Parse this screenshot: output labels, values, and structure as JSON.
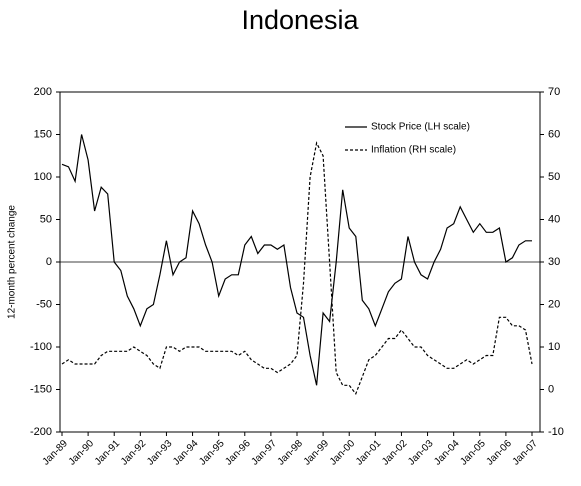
{
  "chart_data": {
    "type": "line",
    "title": "Indonesia",
    "ylabel": "12-month percent change",
    "categories": [
      "Jan-89",
      null,
      null,
      null,
      "Jan-90",
      null,
      null,
      null,
      "Jan-91",
      null,
      null,
      null,
      "Jan-92",
      null,
      null,
      null,
      "Jan-93",
      null,
      null,
      null,
      "Jan-94",
      null,
      null,
      null,
      "Jan-95",
      null,
      null,
      null,
      "Jan-96",
      null,
      null,
      null,
      "Jan-97",
      null,
      null,
      null,
      "Jan-98",
      null,
      null,
      null,
      "Jan-99",
      null,
      null,
      null,
      "Jan-00",
      null,
      null,
      null,
      "Jan-01",
      null,
      null,
      null,
      "Jan-02",
      null,
      null,
      null,
      "Jan-03",
      null,
      null,
      null,
      "Jan-04",
      null,
      null,
      null,
      "Jan-05",
      null,
      null,
      null,
      "Jan-06",
      null,
      null,
      null,
      "Jan-07"
    ],
    "series": [
      {
        "name": "Stock Price (LH scale)",
        "color": "#000000",
        "line_style": "solid",
        "values": [
          115,
          112,
          95,
          150,
          120,
          60,
          88,
          80,
          0,
          -10,
          -40,
          -55,
          -75,
          -55,
          -50,
          -15,
          25,
          -15,
          0,
          5,
          60,
          45,
          20,
          0,
          -40,
          -20,
          -15,
          -15,
          20,
          30,
          10,
          20,
          20,
          15,
          20,
          -30,
          -60,
          -65,
          -110,
          -145,
          -60,
          -70,
          0,
          85,
          40,
          30,
          -45,
          -55,
          -75,
          -55,
          -35,
          -25,
          -20,
          30,
          0,
          -15,
          -20,
          0,
          15,
          40,
          45,
          65,
          50,
          35,
          45,
          35,
          35,
          40,
          0,
          5,
          20,
          25,
          25
        ]
      },
      {
        "name": "Inflation (RH scale)",
        "color": "#000000",
        "line_style": "dashed",
        "axis": "y2",
        "values": [
          6,
          7,
          6,
          6,
          6,
          6,
          8,
          9,
          9,
          9,
          9,
          10,
          9,
          8,
          6,
          5,
          10,
          10,
          9,
          10,
          10,
          10,
          9,
          9,
          9,
          9,
          9,
          8,
          9,
          7,
          6,
          5,
          5,
          4,
          5,
          6,
          8,
          25,
          50,
          58,
          55,
          30,
          4,
          1,
          1,
          -1,
          3,
          7,
          8,
          10,
          12,
          12,
          14,
          12,
          10,
          10,
          8,
          7,
          6,
          5,
          5,
          6,
          7,
          6,
          7,
          8,
          8,
          17,
          17,
          15,
          15,
          14,
          6
        ]
      }
    ],
    "ylim": [
      -200,
      200
    ],
    "yticks": [
      -200,
      -150,
      -100,
      -50,
      0,
      50,
      100,
      150,
      200
    ],
    "y2lim": [
      -10,
      70
    ],
    "y2ticks": [
      -10,
      0,
      10,
      20,
      30,
      40,
      50,
      60,
      70
    ],
    "legend": "upper right",
    "zero_line": true
  }
}
